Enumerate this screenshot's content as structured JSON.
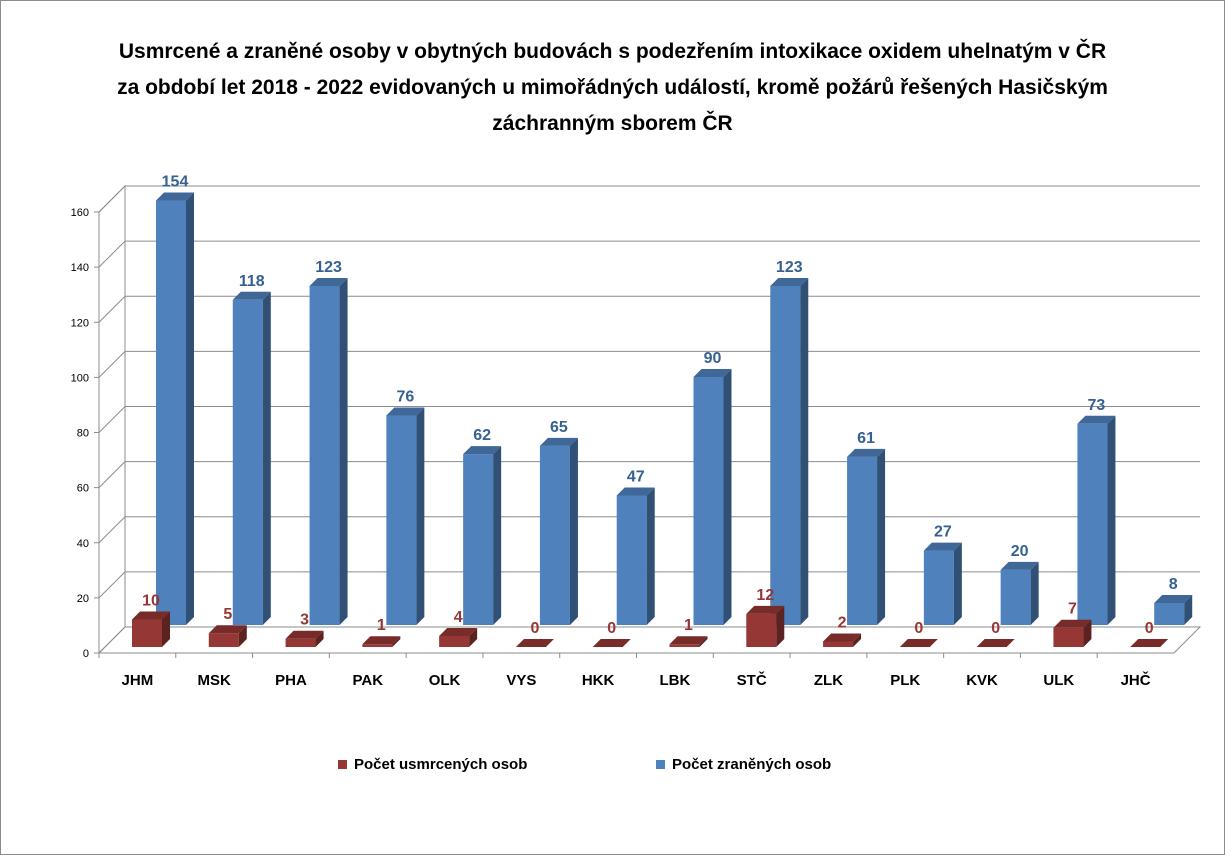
{
  "title_lines": [
    "Usmrcené a zraněné osoby v obytných budovách s podezřením intoxikace oxidem uhelnatým v ČR",
    "za období let 2018 - 2022 evidovaných u mimořádných událostí, kromě požárů řešených Hasičským",
    "záchranným sborem ČR"
  ],
  "chart_data": {
    "type": "bar",
    "style": "3d-clustered",
    "title": "Usmrcené a zraněné osoby v obytných budovách s podezřením intoxikace oxidem uhelnatým v ČR za období let 2018 - 2022 evidovaných u mimořádných událostí, kromě požárů řešených Hasičským záchranným sborem ČR",
    "categories": [
      "JHM",
      "MSK",
      "PHA",
      "PAK",
      "OLK",
      "VYS",
      "HKK",
      "LBK",
      "STČ",
      "ZLK",
      "PLK",
      "KVK",
      "ULK",
      "JHČ"
    ],
    "series": [
      {
        "name": "Počet usmrcených osob",
        "color": "#953735",
        "values": [
          10,
          5,
          3,
          1,
          4,
          0,
          0,
          1,
          12,
          2,
          0,
          0,
          7,
          0
        ]
      },
      {
        "name": "Počet zraněných osob",
        "color": "#4f81bd",
        "values": [
          154,
          118,
          123,
          76,
          62,
          65,
          47,
          90,
          123,
          61,
          27,
          20,
          73,
          8
        ]
      }
    ],
    "ylim": [
      0,
      160
    ],
    "yticks": [
      0,
      20,
      40,
      60,
      80,
      100,
      120,
      140,
      160
    ],
    "grid": true,
    "legend_position": "bottom",
    "data_labels": true
  }
}
